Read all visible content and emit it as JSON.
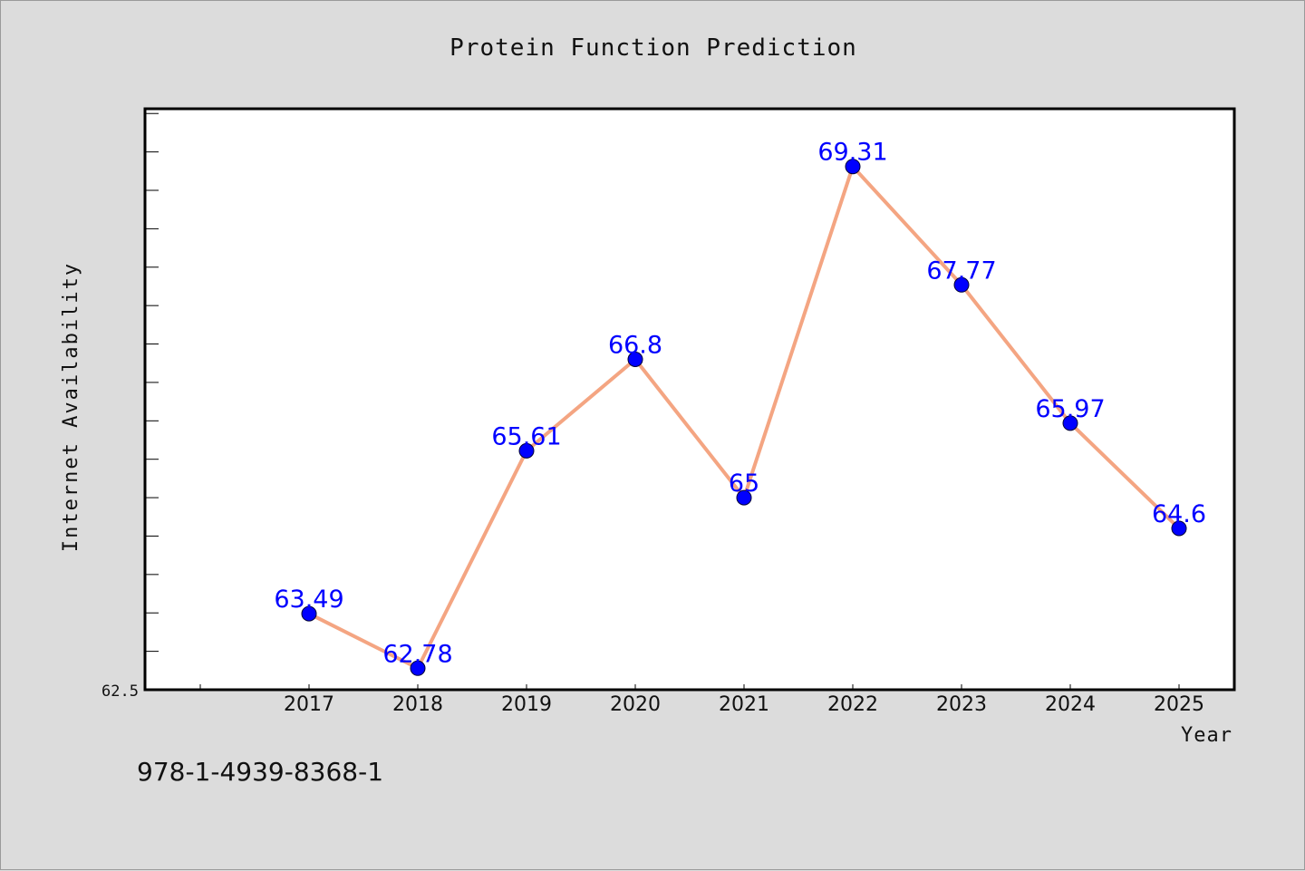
{
  "chart_data": {
    "type": "line",
    "title": "Protein Function Prediction",
    "xlabel": "Year",
    "ylabel": "Internet Availability",
    "categories": [
      "2017",
      "2018",
      "2019",
      "2020",
      "2021",
      "2022",
      "2023",
      "2024",
      "2025"
    ],
    "series": [
      {
        "values": [
          63.49,
          62.78,
          65.61,
          66.8,
          65,
          69.31,
          67.77,
          65.97,
          64.6
        ],
        "labels": [
          "63.49",
          "62.78",
          "65.61",
          "66.8",
          "65",
          "69.31",
          "67.77",
          "65.97",
          "64.6"
        ]
      }
    ],
    "ylim": [
      62.5,
      70.05
    ],
    "y_tick_label": "62.5",
    "line_color": "#f4a582",
    "marker_color": "#0000ff",
    "label_color": "#0000ff",
    "grid": false,
    "legend": "none"
  },
  "footer_code": "978-1-4939-8368-1"
}
